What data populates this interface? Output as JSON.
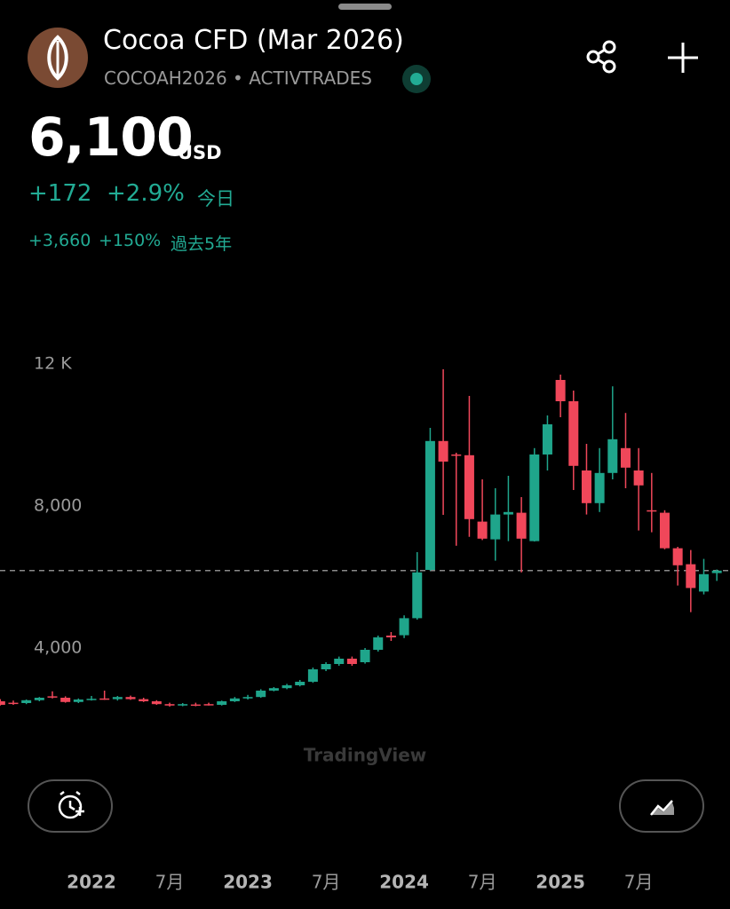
{
  "header": {
    "title": "Cocoa CFD (Mar 2026)",
    "subtitle": "COCOAH2026 • ACTIVTRADES",
    "price": "6,100",
    "currency": "USD",
    "change": "+172",
    "change_pct": "+2.9%",
    "change_period": "今日",
    "long_change": "+3,660",
    "long_change_pct": "+150%",
    "long_period": "過去5年"
  },
  "chart_data": {
    "type": "candlestick",
    "watermark": "TradingView",
    "categories": [
      null,
      null,
      null,
      null,
      null,
      null,
      null,
      "2022",
      null,
      null,
      null,
      null,
      null,
      "7月",
      null,
      null,
      null,
      null,
      null,
      "2023",
      null,
      null,
      null,
      null,
      null,
      "7月",
      null,
      null,
      null,
      null,
      null,
      "2024",
      null,
      null,
      null,
      null,
      null,
      "7月",
      null,
      null,
      null,
      null,
      null,
      "2025",
      null,
      null,
      null,
      null,
      null,
      "7月",
      null,
      null,
      null,
      null,
      null,
      null
    ],
    "open": [
      2500,
      2460,
      2450,
      2530,
      2640,
      2600,
      2480,
      2560,
      2580,
      2560,
      2620,
      2560,
      2500,
      2420,
      2380,
      2410,
      2420,
      2400,
      2500,
      2580,
      2620,
      2800,
      2870,
      2950,
      3050,
      3400,
      3550,
      3700,
      3600,
      3950,
      4350,
      4360,
      4840,
      6200,
      9830,
      9450,
      9430,
      7560,
      7060,
      7760,
      7810,
      7010,
      9450,
      11550,
      10950,
      9000,
      8080,
      8930,
      9630,
      9000,
      7880,
      7810,
      6810,
      6360,
      5590,
      6110
    ],
    "high": [
      2560,
      2520,
      2550,
      2620,
      2780,
      2640,
      2580,
      2650,
      2800,
      2650,
      2660,
      2600,
      2530,
      2460,
      2450,
      2460,
      2460,
      2520,
      2620,
      2680,
      2840,
      2900,
      2990,
      3100,
      3450,
      3600,
      3760,
      3760,
      4000,
      4350,
      4450,
      4920,
      6700,
      10200,
      11850,
      9500,
      11100,
      8750,
      8500,
      8850,
      8250,
      9630,
      10550,
      11700,
      11250,
      9750,
      9630,
      11370,
      10620,
      9630,
      8930,
      7880,
      6850,
      6760,
      6510,
      6210
    ],
    "low": [
      2380,
      2400,
      2420,
      2500,
      2580,
      2460,
      2450,
      2520,
      2540,
      2520,
      2540,
      2480,
      2400,
      2350,
      2360,
      2360,
      2380,
      2380,
      2480,
      2550,
      2600,
      2780,
      2840,
      2920,
      3020,
      3350,
      3500,
      3500,
      3560,
      3900,
      4200,
      4280,
      4800,
      6180,
      7750,
      6880,
      7130,
      7040,
      6460,
      7010,
      6130,
      7000,
      9000,
      10500,
      8450,
      7760,
      7830,
      8750,
      8500,
      7310,
      7260,
      6780,
      5760,
      5010,
      5510,
      5890
    ],
    "close": [
      2400,
      2450,
      2530,
      2600,
      2620,
      2480,
      2550,
      2570,
      2560,
      2620,
      2560,
      2500,
      2420,
      2380,
      2420,
      2400,
      2400,
      2500,
      2580,
      2620,
      2800,
      2870,
      2950,
      3050,
      3400,
      3550,
      3700,
      3550,
      3950,
      4300,
      4300,
      4840,
      6130,
      9830,
      9250,
      9420,
      7630,
      7080,
      7760,
      7830,
      7080,
      9450,
      10300,
      10950,
      9130,
      8080,
      8930,
      9880,
      9080,
      8580,
      7860,
      6810,
      6330,
      5690,
      6080,
      6180
    ],
    "up_color": "#1fa58b",
    "down_color": "#f0475a",
    "ylim": [
      500,
      14000
    ],
    "yticks": [
      {
        "value": 12000,
        "label": "12 K"
      },
      {
        "value": 8000,
        "label": "8,000"
      },
      {
        "value": 4000,
        "label": "4,000"
      }
    ]
  }
}
